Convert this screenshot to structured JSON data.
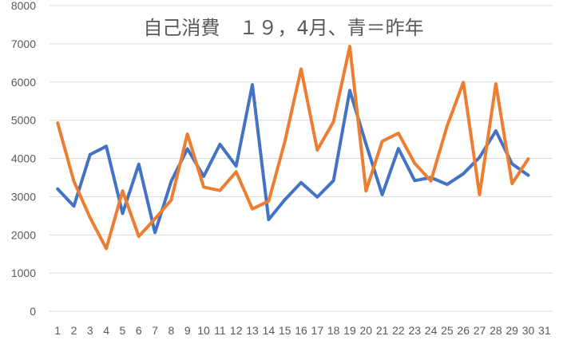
{
  "chart_data": {
    "type": "line",
    "title": "自己消費　１９，4月、青＝昨年",
    "categories": [
      "1",
      "2",
      "3",
      "4",
      "5",
      "6",
      "7",
      "8",
      "9",
      "10",
      "11",
      "12",
      "13",
      "14",
      "15",
      "16",
      "17",
      "18",
      "19",
      "20",
      "21",
      "22",
      "23",
      "24",
      "25",
      "26",
      "27",
      "28",
      "29",
      "30",
      "31"
    ],
    "ylim": [
      0,
      8000
    ],
    "yticks": [
      "0",
      "1000",
      "2000",
      "3000",
      "4000",
      "5000",
      "6000",
      "7000",
      "8000"
    ],
    "grid": true,
    "legend": "none",
    "series": [
      {
        "color": "#4472C4",
        "values": [
          3200,
          2750,
          4100,
          4320,
          2560,
          3850,
          2060,
          3400,
          4250,
          3530,
          4370,
          3800,
          5930,
          2400,
          2920,
          3370,
          2990,
          3420,
          5780,
          4380,
          3050,
          4260,
          3420,
          3500,
          3320,
          3600,
          4030,
          4720,
          3860,
          3560,
          null
        ]
      },
      {
        "color": "#ED7D31",
        "values": [
          4930,
          3400,
          2450,
          1640,
          3150,
          1960,
          2420,
          2910,
          4640,
          3250,
          3160,
          3650,
          2680,
          2880,
          4440,
          6340,
          4220,
          4960,
          6930,
          3150,
          4450,
          4660,
          3870,
          3410,
          4850,
          5990,
          3050,
          5950,
          3340,
          3990,
          null
        ]
      }
    ]
  }
}
